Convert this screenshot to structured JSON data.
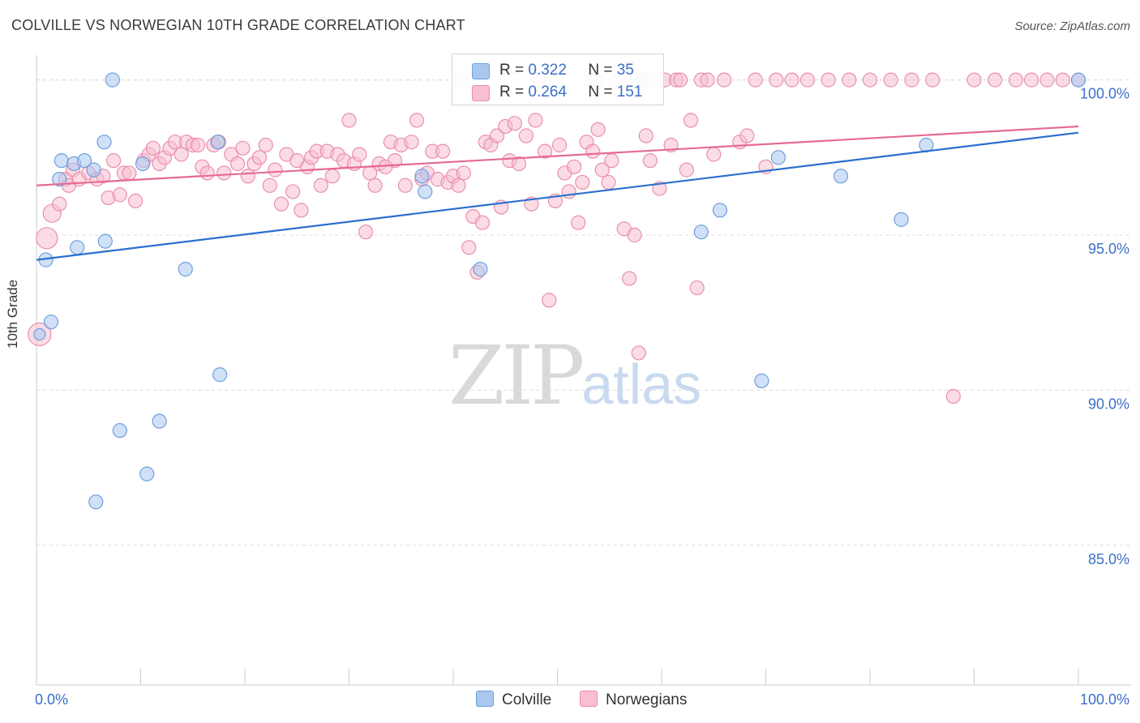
{
  "title": "COLVILLE VS NORWEGIAN 10TH GRADE CORRELATION CHART",
  "source": "Source: ZipAtlas.com",
  "watermark": {
    "zip": "ZIP",
    "atlas": "atlas"
  },
  "legend_top": [
    {
      "r_label": "R =",
      "r_value": "0.322",
      "n_label": "N =",
      "n_value": "35",
      "color": "#a9c8f0",
      "border": "#6f9fdc"
    },
    {
      "r_label": "R =",
      "r_value": "0.264",
      "n_label": "N =",
      "n_value": "151",
      "color": "#f7bfd0",
      "border": "#e98fab"
    }
  ],
  "legend_bottom": [
    {
      "label": "Colville",
      "color": "#a9c8f0",
      "border": "#6f9fdc"
    },
    {
      "label": "Norwegians",
      "color": "#f7bfd0",
      "border": "#e98fab"
    }
  ],
  "chart_data": {
    "type": "scatter",
    "title": "COLVILLE VS NORWEGIAN 10TH GRADE CORRELATION CHART",
    "ylabel": "10th Grade",
    "xlabel": "",
    "xlim": [
      0,
      100
    ],
    "ylim": [
      80.5,
      100.8
    ],
    "x_tick_labels": [
      "0.0%",
      "100.0%"
    ],
    "y_ticks": [
      85,
      90,
      95,
      100
    ],
    "y_tick_labels": [
      "85.0%",
      "90.0%",
      "95.0%",
      "100.0%"
    ],
    "grid": "horizontal dashed",
    "series": [
      {
        "name": "Colville",
        "color": "#6f9fdc",
        "fill": "#a9c8f0",
        "line_color": "#2a6fce",
        "trend": {
          "x": [
            0,
            100
          ],
          "y": [
            94.2,
            98.3
          ]
        },
        "points": [
          [
            0.3,
            91.8
          ],
          [
            1.4,
            92.2
          ],
          [
            0.9,
            94.2
          ],
          [
            3.9,
            94.6
          ],
          [
            6.6,
            94.8
          ],
          [
            2.2,
            96.8
          ],
          [
            2.4,
            97.4
          ],
          [
            3.6,
            97.3
          ],
          [
            4.6,
            97.4
          ],
          [
            5.5,
            97.1
          ],
          [
            6.5,
            98.0
          ],
          [
            7.3,
            100.0
          ],
          [
            10.2,
            97.3
          ],
          [
            14.3,
            93.9
          ],
          [
            17.4,
            98.0
          ],
          [
            17.6,
            90.5
          ],
          [
            8.0,
            88.7
          ],
          [
            10.6,
            87.3
          ],
          [
            11.8,
            89.0
          ],
          [
            5.7,
            86.4
          ],
          [
            37.0,
            96.9
          ],
          [
            37.3,
            96.4
          ],
          [
            40.7,
            100.0
          ],
          [
            42.6,
            93.9
          ],
          [
            53.1,
            100.0
          ],
          [
            53.7,
            100.0
          ],
          [
            57.6,
            100.0
          ],
          [
            63.8,
            95.1
          ],
          [
            65.6,
            95.8
          ],
          [
            69.6,
            90.3
          ],
          [
            71.2,
            97.5
          ],
          [
            77.2,
            96.9
          ],
          [
            83.0,
            95.5
          ],
          [
            85.4,
            97.9
          ],
          [
            100.0,
            100.0
          ]
        ]
      },
      {
        "name": "Norwegians",
        "color": "#e98fab",
        "fill": "#f7bfd0",
        "line_color": "#e56a93",
        "trend": {
          "x": [
            0,
            100
          ],
          "y": [
            96.6,
            98.5
          ]
        },
        "points": [
          [
            0.3,
            91.8
          ],
          [
            1.0,
            94.9
          ],
          [
            1.5,
            95.7
          ],
          [
            2.2,
            96.0
          ],
          [
            2.8,
            96.8
          ],
          [
            3.1,
            96.6
          ],
          [
            3.5,
            97.1
          ],
          [
            4.1,
            96.8
          ],
          [
            5.0,
            97.0
          ],
          [
            5.8,
            96.8
          ],
          [
            6.4,
            96.9
          ],
          [
            6.9,
            96.2
          ],
          [
            7.4,
            97.4
          ],
          [
            8.0,
            96.3
          ],
          [
            8.4,
            97.0
          ],
          [
            8.9,
            97.0
          ],
          [
            9.5,
            96.1
          ],
          [
            10.3,
            97.4
          ],
          [
            10.8,
            97.6
          ],
          [
            11.2,
            97.8
          ],
          [
            11.8,
            97.3
          ],
          [
            12.3,
            97.5
          ],
          [
            12.8,
            97.8
          ],
          [
            13.3,
            98.0
          ],
          [
            13.9,
            97.6
          ],
          [
            14.4,
            98.0
          ],
          [
            15.0,
            97.9
          ],
          [
            15.5,
            97.9
          ],
          [
            15.9,
            97.2
          ],
          [
            16.4,
            97.0
          ],
          [
            17.0,
            97.9
          ],
          [
            17.5,
            98.0
          ],
          [
            18.0,
            97.0
          ],
          [
            18.7,
            97.6
          ],
          [
            19.3,
            97.3
          ],
          [
            19.8,
            97.8
          ],
          [
            20.3,
            96.9
          ],
          [
            20.9,
            97.3
          ],
          [
            21.4,
            97.5
          ],
          [
            22.0,
            97.9
          ],
          [
            22.4,
            96.6
          ],
          [
            22.9,
            97.1
          ],
          [
            23.5,
            96.0
          ],
          [
            24.0,
            97.6
          ],
          [
            24.6,
            96.4
          ],
          [
            25.0,
            97.4
          ],
          [
            25.4,
            95.8
          ],
          [
            26.0,
            97.2
          ],
          [
            26.4,
            97.5
          ],
          [
            26.9,
            97.7
          ],
          [
            27.3,
            96.6
          ],
          [
            27.9,
            97.7
          ],
          [
            28.4,
            96.9
          ],
          [
            28.9,
            97.6
          ],
          [
            29.5,
            97.4
          ],
          [
            30.0,
            98.7
          ],
          [
            30.5,
            97.3
          ],
          [
            31.0,
            97.6
          ],
          [
            31.6,
            95.1
          ],
          [
            32.0,
            97.0
          ],
          [
            32.5,
            96.6
          ],
          [
            32.9,
            97.3
          ],
          [
            33.5,
            97.2
          ],
          [
            34.0,
            98.0
          ],
          [
            34.4,
            97.4
          ],
          [
            35.0,
            97.9
          ],
          [
            35.4,
            96.6
          ],
          [
            36.0,
            98.0
          ],
          [
            36.5,
            98.7
          ],
          [
            37.0,
            96.8
          ],
          [
            37.5,
            97.0
          ],
          [
            38.0,
            97.7
          ],
          [
            38.5,
            96.8
          ],
          [
            39.0,
            97.7
          ],
          [
            39.5,
            96.7
          ],
          [
            40.0,
            96.9
          ],
          [
            40.5,
            96.6
          ],
          [
            41.0,
            97.0
          ],
          [
            41.5,
            94.6
          ],
          [
            41.9,
            95.6
          ],
          [
            42.3,
            93.8
          ],
          [
            42.8,
            95.4
          ],
          [
            43.1,
            98.0
          ],
          [
            43.6,
            97.9
          ],
          [
            44.2,
            98.2
          ],
          [
            44.6,
            95.9
          ],
          [
            45.0,
            98.5
          ],
          [
            45.4,
            97.4
          ],
          [
            45.9,
            98.6
          ],
          [
            46.3,
            97.3
          ],
          [
            47.0,
            98.2
          ],
          [
            47.5,
            96.0
          ],
          [
            47.9,
            98.7
          ],
          [
            48.2,
            100.0
          ],
          [
            48.8,
            97.7
          ],
          [
            49.2,
            92.9
          ],
          [
            49.8,
            96.1
          ],
          [
            50.2,
            97.9
          ],
          [
            50.7,
            97.0
          ],
          [
            51.1,
            96.4
          ],
          [
            51.6,
            97.2
          ],
          [
            52.0,
            95.4
          ],
          [
            52.4,
            96.7
          ],
          [
            52.8,
            98.0
          ],
          [
            53.4,
            97.7
          ],
          [
            53.9,
            98.4
          ],
          [
            54.3,
            97.1
          ],
          [
            54.9,
            96.7
          ],
          [
            55.2,
            97.4
          ],
          [
            55.8,
            100.0
          ],
          [
            56.4,
            95.2
          ],
          [
            56.9,
            93.6
          ],
          [
            57.4,
            95.0
          ],
          [
            57.8,
            91.2
          ],
          [
            58.2,
            100.0
          ],
          [
            58.5,
            98.2
          ],
          [
            58.9,
            97.4
          ],
          [
            59.3,
            100.0
          ],
          [
            59.8,
            96.5
          ],
          [
            60.3,
            100.0
          ],
          [
            60.9,
            97.9
          ],
          [
            61.4,
            100.0
          ],
          [
            61.8,
            100.0
          ],
          [
            62.4,
            97.1
          ],
          [
            62.8,
            98.7
          ],
          [
            63.4,
            93.3
          ],
          [
            63.8,
            100.0
          ],
          [
            64.4,
            100.0
          ],
          [
            65.0,
            97.6
          ],
          [
            66.0,
            100.0
          ],
          [
            67.5,
            98.0
          ],
          [
            68.2,
            98.2
          ],
          [
            69.0,
            100.0
          ],
          [
            70.0,
            97.2
          ],
          [
            71.0,
            100.0
          ],
          [
            72.5,
            100.0
          ],
          [
            74.0,
            100.0
          ],
          [
            76.0,
            100.0
          ],
          [
            78.0,
            100.0
          ],
          [
            80.0,
            100.0
          ],
          [
            82.0,
            100.0
          ],
          [
            84.0,
            100.0
          ],
          [
            86.0,
            100.0
          ],
          [
            88.0,
            89.8
          ],
          [
            90.0,
            100.0
          ],
          [
            92.0,
            100.0
          ],
          [
            94.0,
            100.0
          ],
          [
            95.5,
            100.0
          ],
          [
            97.0,
            100.0
          ],
          [
            98.5,
            100.0
          ],
          [
            100.0,
            100.0
          ]
        ]
      }
    ]
  }
}
